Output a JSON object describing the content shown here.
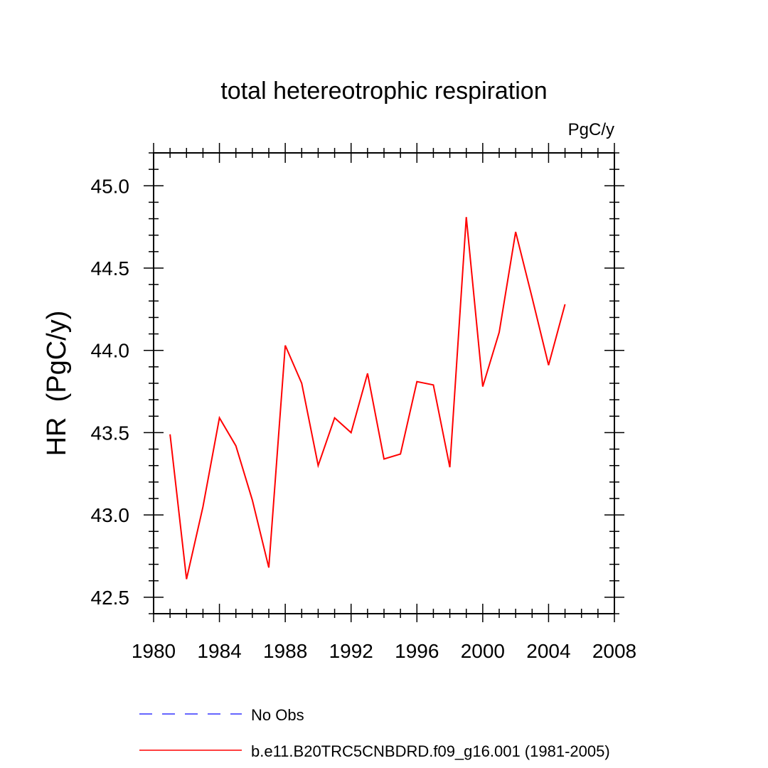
{
  "chart_data": {
    "type": "line",
    "title": "total hetereotrophic respiration",
    "units_label": "PgC/y",
    "ylabel": "HR  (PgC/y)",
    "xlabel": "",
    "xlim": [
      1980,
      2008
    ],
    "ylim": [
      42.4,
      45.2
    ],
    "x_ticks": [
      1980,
      1984,
      1988,
      1992,
      1996,
      2000,
      2004,
      2008
    ],
    "x_tick_labels": [
      "1980",
      "1984",
      "1988",
      "1992",
      "1996",
      "2000",
      "2004",
      "2008"
    ],
    "y_ticks": [
      42.5,
      43.0,
      43.5,
      44.0,
      44.5,
      45.0
    ],
    "y_tick_labels": [
      "42.5",
      "43.0",
      "43.5",
      "44.0",
      "44.5",
      "45.0"
    ],
    "grid": false,
    "legend_position": "bottom",
    "series": [
      {
        "name": "b.e11.B20TRC5CNBDRD.f09_g16.001 (1981-2005)",
        "color": "#ff0000",
        "dash": "solid",
        "x": [
          1981,
          1982,
          1983,
          1984,
          1985,
          1986,
          1987,
          1988,
          1989,
          1990,
          1991,
          1992,
          1993,
          1994,
          1995,
          1996,
          1997,
          1998,
          1999,
          2000,
          2001,
          2002,
          2003,
          2004,
          2005
        ],
        "values": [
          43.49,
          42.61,
          43.05,
          43.59,
          43.42,
          43.09,
          42.68,
          44.03,
          43.8,
          43.3,
          43.59,
          43.5,
          43.86,
          43.34,
          43.37,
          43.81,
          43.79,
          43.29,
          44.81,
          43.78,
          44.11,
          44.72,
          44.32,
          43.91,
          44.28
        ]
      }
    ],
    "legend": [
      {
        "label": "No Obs",
        "color": "#3333ff",
        "dash": "dashed"
      },
      {
        "label": "b.e11.B20TRC5CNBDRD.f09_g16.001 (1981-2005)",
        "color": "#ff0000",
        "dash": "solid"
      }
    ]
  }
}
